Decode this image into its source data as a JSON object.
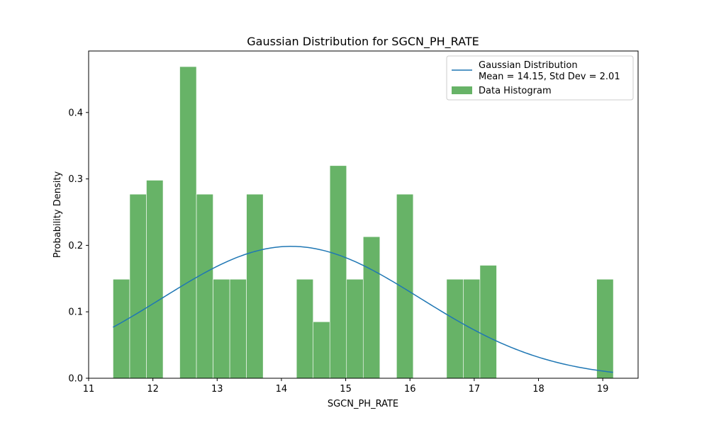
{
  "chart_data": {
    "type": "bar",
    "title": "Gaussian Distribution for SGCN_PH_RATE",
    "xlabel": "SGCN_PH_RATE",
    "ylabel": "Probability Density",
    "xlim": [
      11.0,
      19.55
    ],
    "ylim": [
      0.0,
      0.4925
    ],
    "xticks": [
      11,
      12,
      13,
      14,
      15,
      16,
      17,
      18,
      19
    ],
    "yticks": [
      0.0,
      0.1,
      0.2,
      0.3,
      0.4
    ],
    "grid": false,
    "legend_position": "top-right",
    "histogram": {
      "name": "Data Histogram",
      "color": "#4CA64C",
      "opacity": 0.85,
      "bin_start": 11.38,
      "bin_width": 0.2595,
      "values": [
        0.149,
        0.277,
        0.298,
        0,
        0.469,
        0.277,
        0.149,
        0.149,
        0.277,
        0,
        0,
        0.149,
        0.085,
        0.32,
        0.149,
        0.213,
        0,
        0.277,
        0,
        0,
        0.149,
        0.149,
        0.17,
        0,
        0,
        0,
        0,
        0,
        0,
        0.149
      ]
    },
    "gaussian": {
      "name": "Gaussian Distribution",
      "label_line2": "Mean = 14.15, Std Dev = 2.01",
      "mean": 14.15,
      "std": 2.01,
      "x_start": 11.38,
      "x_end": 19.16,
      "color": "#1f77b4"
    }
  }
}
